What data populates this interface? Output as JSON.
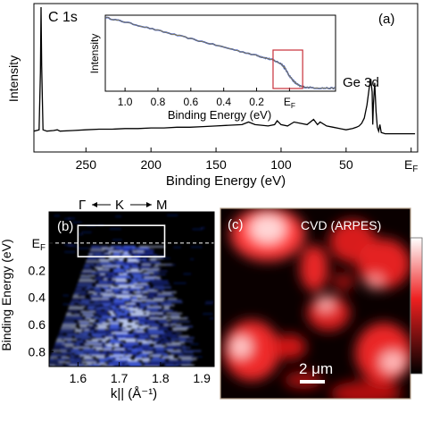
{
  "chart_data": [
    {
      "panel": "(a)",
      "type": "line",
      "xlabel": "Binding Energy (eV)",
      "ylabel": "Intensity",
      "x_reversed": true,
      "xlim": [
        290,
        -5
      ],
      "xticks": [
        "250",
        "200",
        "150",
        "100",
        "50",
        "E_F"
      ],
      "xtick_values": [
        250,
        200,
        150,
        100,
        50,
        0
      ],
      "annotations": [
        {
          "text": "C 1s",
          "x": 284.5
        },
        {
          "text": "Ge 3d",
          "x": 30
        }
      ],
      "series": [
        {
          "color": "#000000",
          "x": [
            290,
            286,
            285,
            284.5,
            284,
            283,
            280,
            275,
            272,
            270,
            260,
            250,
            240,
            230,
            220,
            210,
            200,
            190,
            180,
            170,
            160,
            150,
            140,
            130,
            125,
            120,
            110,
            105,
            103,
            100,
            95,
            90,
            80,
            75,
            72,
            70,
            65,
            60,
            55,
            50,
            45,
            42,
            40,
            38,
            36,
            34,
            32,
            31,
            30,
            29.5,
            29,
            28,
            27,
            26,
            25,
            24,
            23,
            20,
            15,
            10,
            5,
            2,
            0,
            -3
          ],
          "y": [
            0.05,
            0.06,
            0.5,
            1.0,
            0.55,
            0.06,
            0.05,
            0.055,
            0.06,
            0.05,
            0.055,
            0.06,
            0.065,
            0.065,
            0.07,
            0.07,
            0.075,
            0.075,
            0.08,
            0.08,
            0.085,
            0.09,
            0.095,
            0.1,
            0.12,
            0.1,
            0.09,
            0.1,
            0.13,
            0.1,
            0.09,
            0.12,
            0.1,
            0.14,
            0.1,
            0.12,
            0.09,
            0.08,
            0.07,
            0.06,
            0.07,
            0.08,
            0.09,
            0.11,
            0.15,
            0.25,
            0.4,
            0.45,
            0.35,
            0.1,
            0.25,
            0.42,
            0.2,
            0.08,
            0.05,
            0.1,
            0.04,
            0.03,
            0.03,
            0.03,
            0.03,
            0.03,
            0.03,
            0.03
          ]
        }
      ],
      "inset": {
        "xlabel": "Binding Energy (eV)",
        "ylabel": "Intensity",
        "xlim": [
          1.12,
          -0.28
        ],
        "xticks": [
          "1.0",
          "0.8",
          "0.6",
          "0.4",
          "0.2",
          "E_F"
        ],
        "xtick_values": [
          1.0,
          0.8,
          0.6,
          0.4,
          0.2,
          0.0
        ],
        "series": [
          {
            "color": "#1f3fbf",
            "x": [
              1.12,
              1.0,
              0.8,
              0.6,
              0.4,
              0.2,
              0.15,
              0.1,
              0.05,
              0.03,
              0.0,
              -0.03,
              -0.06,
              -0.1,
              -0.2,
              -0.28
            ],
            "y": [
              0.97,
              0.91,
              0.8,
              0.69,
              0.58,
              0.47,
              0.44,
              0.41,
              0.36,
              0.31,
              0.2,
              0.12,
              0.07,
              0.05,
              0.04,
              0.04
            ]
          }
        ],
        "highlight_box_x": [
          0.1,
          -0.08
        ]
      }
    },
    {
      "panel": "(b)",
      "type": "heatmap",
      "xlabel": "k|| (Å⁻¹)",
      "ylabel": "Binding Energy (eV)",
      "xlim": [
        1.53,
        1.93
      ],
      "ylim": [
        -0.23,
        0.91
      ],
      "y_reversed": true,
      "xticks": [
        "1.6",
        "1.7",
        "1.8",
        "1.9"
      ],
      "xtick_values": [
        1.6,
        1.7,
        1.8,
        1.9
      ],
      "yticks": [
        "E_F",
        "0.2",
        "0.4",
        "0.6",
        "0.8"
      ],
      "ytick_values": [
        0.0,
        0.2,
        0.4,
        0.6,
        0.8
      ],
      "direction_labels": [
        "Γ",
        "K",
        "M"
      ],
      "highlight_box": {
        "x": [
          1.6,
          1.81
        ],
        "y": [
          -0.13,
          0.1
        ]
      }
    },
    {
      "panel": "(c)",
      "type": "heatmap",
      "title": "CVD (ARPES)",
      "scalebar": "2 μm"
    }
  ]
}
